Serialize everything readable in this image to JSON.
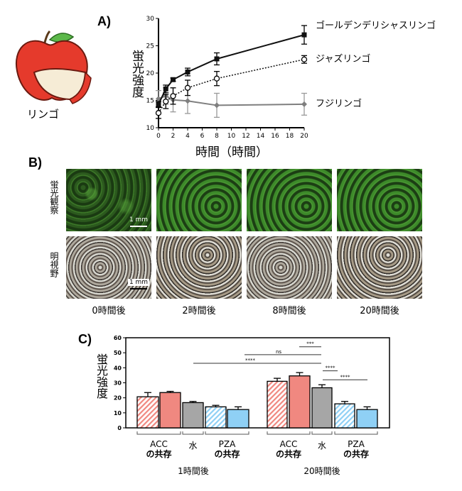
{
  "panel_labels": {
    "a": "A)",
    "b": "B)",
    "c": "C)"
  },
  "apple_label": "リンゴ",
  "colors": {
    "golden": "#111111",
    "jazz": "#111111",
    "fuji": "#7f7f7f",
    "acc": "#f08880",
    "water": "#a6a6a6",
    "pza": "#8fd0f5"
  },
  "chart_data": [
    {
      "type": "line",
      "title": "",
      "xlabel": "時間（時間）",
      "ylabel": "蛍光強度",
      "xlim": [
        0,
        20
      ],
      "ylim": [
        10,
        30
      ],
      "xticks": [
        "0",
        "2",
        "4",
        "6",
        "8",
        "10",
        "12",
        "14",
        "16",
        "18",
        "20"
      ],
      "yticks": [
        "10",
        "15",
        "20",
        "25",
        "30"
      ],
      "x": [
        0,
        1,
        2,
        4,
        8,
        20
      ],
      "series": [
        {
          "name": "ゴールデンデリシャスリンゴ",
          "values": [
            14.3,
            17.1,
            18.8,
            20.2,
            22.6,
            27.0
          ],
          "errors": [
            0.5,
            0.7,
            0.3,
            0.7,
            1.1,
            1.7
          ],
          "marker": "square",
          "line": "solid"
        },
        {
          "name": "ジャズリンゴ",
          "values": [
            12.7,
            14.8,
            15.8,
            17.3,
            19.0,
            22.5
          ],
          "errors": [
            1.0,
            1.3,
            1.5,
            1.4,
            1.3,
            0.7
          ],
          "marker": "open-circle",
          "line": "dotted"
        },
        {
          "name": "フジリンゴ",
          "values": [
            15.3,
            15.8,
            15.1,
            14.9,
            14.1,
            14.3
          ],
          "errors": [
            1.5,
            1.5,
            2.2,
            2.3,
            2.2,
            2.0
          ],
          "marker": "diamond",
          "line": "solid"
        }
      ]
    },
    {
      "type": "bar",
      "ylabel": "蛍光強度",
      "ylim": [
        0,
        60
      ],
      "yticks": [
        "0",
        "10",
        "20",
        "30",
        "40",
        "50",
        "60"
      ],
      "groups": [
        {
          "label": "1時間後"
        },
        {
          "label": "20時間後"
        }
      ],
      "subgroups": [
        "ACC\nの共存",
        "水",
        "PZA\nの共存"
      ],
      "subgroup_labels": {
        "acc_line1": "ACC",
        "acc_line2": "の共存",
        "water": "水",
        "pza_line1": "PZA",
        "pza_line2": "の共存"
      },
      "bars": [
        {
          "group": "1時間後",
          "condition": "ACC (hatched)",
          "value": 20.7,
          "error": 2.8
        },
        {
          "group": "1時間後",
          "condition": "ACC",
          "value": 23.5,
          "error": 0.8
        },
        {
          "group": "1時間後",
          "condition": "水",
          "value": 16.8,
          "error": 0.8
        },
        {
          "group": "1時間後",
          "condition": "PZA (hatched)",
          "value": 14.0,
          "error": 1.0
        },
        {
          "group": "1時間後",
          "condition": "PZA",
          "value": 12.2,
          "error": 1.8
        },
        {
          "group": "20時間後",
          "condition": "ACC (hatched)",
          "value": 31.0,
          "error": 2.0
        },
        {
          "group": "20時間後",
          "condition": "ACC",
          "value": 34.6,
          "error": 2.2
        },
        {
          "group": "20時間後",
          "condition": "水",
          "value": 26.7,
          "error": 2.0
        },
        {
          "group": "20時間後",
          "condition": "PZA (hatched)",
          "value": 16.0,
          "error": 1.6
        },
        {
          "group": "20時間後",
          "condition": "PZA",
          "value": 12.2,
          "error": 1.8
        }
      ],
      "significance": [
        {
          "from": 7,
          "to": 2,
          "label": "****"
        },
        {
          "from": 5,
          "to": 7,
          "label": "ns"
        },
        {
          "from": 6,
          "to": 7,
          "label": "***"
        },
        {
          "from": 7,
          "to": 8,
          "label": "****"
        },
        {
          "from": 7,
          "to": 9,
          "label": "****"
        }
      ]
    }
  ],
  "panel_b": {
    "row_labels": [
      "蛍光観察",
      "明視野"
    ],
    "captions": [
      "0時間後",
      "2時間後",
      "8時間後",
      "20時間後"
    ],
    "scale_bar": "1 mm"
  }
}
